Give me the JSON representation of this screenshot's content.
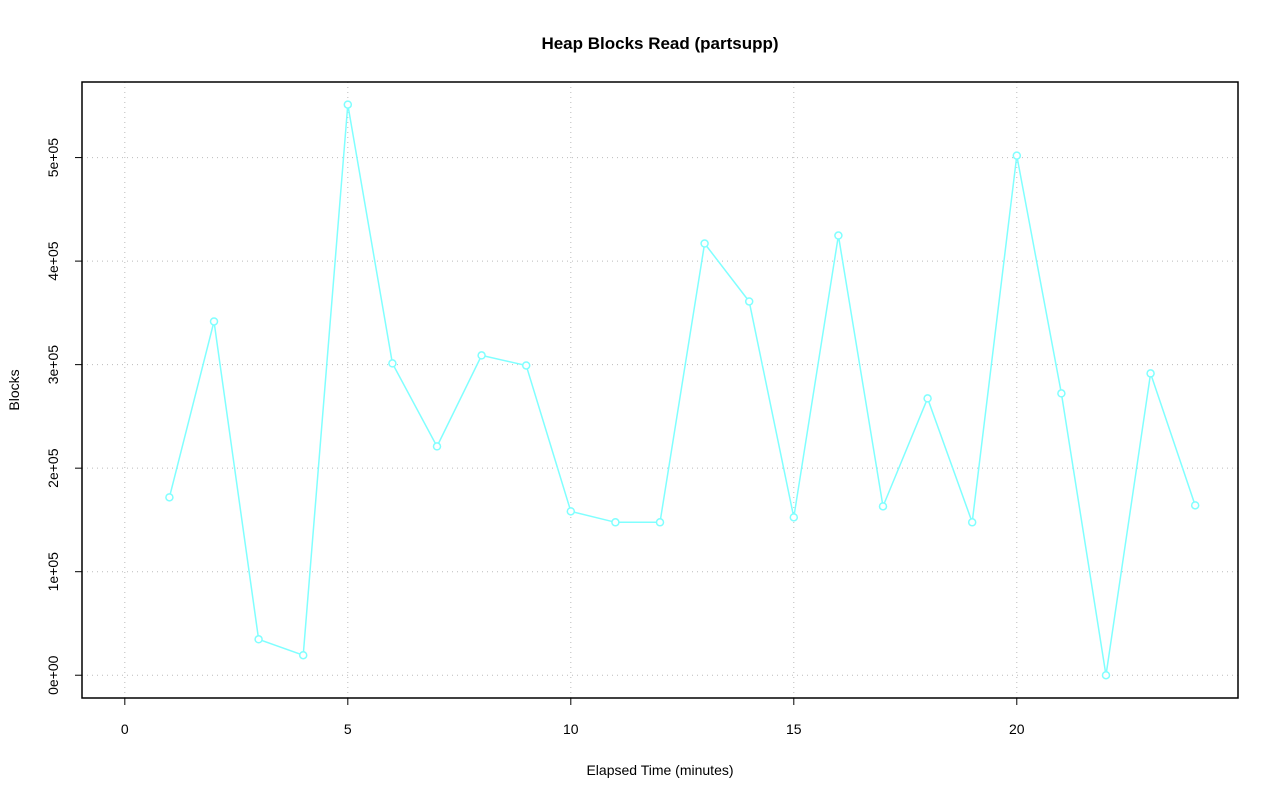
{
  "chart_data": {
    "type": "line",
    "title": "Heap Blocks Read (partsupp)",
    "x_label": "Elapsed Time (minutes)",
    "y_label": "Blocks",
    "x": [
      1,
      2,
      3,
      4,
      5,
      6,
      7,
      8,
      9,
      10,
      11,
      12,
      13,
      14,
      15,
      16,
      17,
      18,
      19,
      20,
      21,
      22,
      23,
      24
    ],
    "series": [
      {
        "name": "partsupp",
        "color": "#80ffff",
        "values": [
          171800,
          341700,
          34700,
          19300,
          551200,
          301200,
          221000,
          308900,
          299200,
          158300,
          147700,
          147700,
          417000,
          361000,
          152500,
          424700,
          163100,
          267400,
          147700,
          501900,
          272200,
          0,
          291500,
          164100
        ]
      }
    ],
    "xlim": [
      -0.96,
      24.96
    ],
    "ylim": [
      -22000,
      573000
    ],
    "xticks": [
      0,
      5,
      10,
      15,
      20
    ],
    "yticks": [
      {
        "value": 0,
        "label": "0e+00"
      },
      {
        "value": 100000,
        "label": "1e+05"
      },
      {
        "value": 200000,
        "label": "2e+05"
      },
      {
        "value": 300000,
        "label": "3e+05"
      },
      {
        "value": 400000,
        "label": "4e+05"
      },
      {
        "value": 500000,
        "label": "5e+05"
      }
    ],
    "grid": true
  }
}
